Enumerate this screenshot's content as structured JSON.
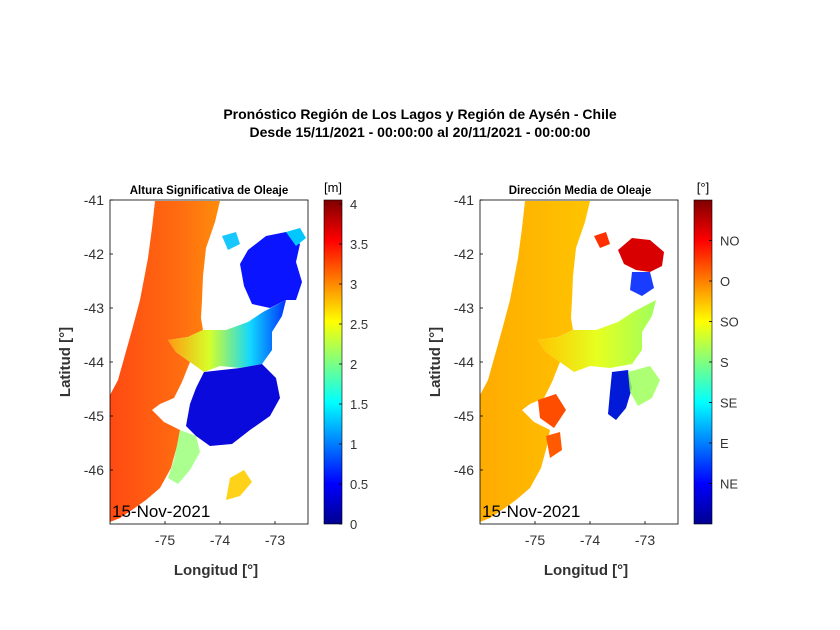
{
  "figure": {
    "title_line1": "Pronóstico Región de Los Lagos y Región de Aysén - Chile",
    "title_line2": "Desde 15/11/2021 - 00:00:00 al 20/11/2021 - 00:00:00"
  },
  "chart_data": [
    {
      "type": "heatmap",
      "title": "Altura Significativa de Oleaje",
      "xlabel": "Longitud [°]",
      "ylabel": "Latitud [°]",
      "date_label": "15-Nov-2021",
      "xlim": [
        -76.0,
        -72.4
      ],
      "ylim": [
        -47.0,
        -41.0
      ],
      "xticks": [
        -75,
        -74,
        -73
      ],
      "yticks": [
        -41,
        -42,
        -43,
        -44,
        -45,
        -46
      ],
      "colorbar": {
        "unit_label": "[m]",
        "range": [
          0,
          4.05
        ],
        "ticks": [
          0,
          0.5,
          1,
          1.5,
          2,
          2.5,
          3,
          3.5,
          4
        ],
        "tick_labels": [
          "0",
          "0.5",
          "1",
          "1.5",
          "2",
          "2.5",
          "3",
          "3.5",
          "4"
        ],
        "colormap": "jet"
      },
      "grid": false
    },
    {
      "type": "heatmap",
      "title": "Dirección Media de Oleaje",
      "xlabel": "Longitud [°]",
      "ylabel": "Latitud [°]",
      "date_label": "15-Nov-2021",
      "xlim": [
        -76.0,
        -72.4
      ],
      "ylim": [
        -47.0,
        -41.0
      ],
      "xticks": [
        -75,
        -74,
        -73
      ],
      "yticks": [
        -41,
        -42,
        -43,
        -44,
        -45,
        -46
      ],
      "colorbar": {
        "unit_label": "[°]",
        "range": [
          0,
          8
        ],
        "ticks": [
          1,
          2,
          3,
          4,
          5,
          6,
          7
        ],
        "tick_labels": [
          "NE",
          "E",
          "SE",
          "S",
          "SO",
          "O",
          "NO"
        ],
        "colormap": "jet"
      },
      "grid": false
    }
  ]
}
